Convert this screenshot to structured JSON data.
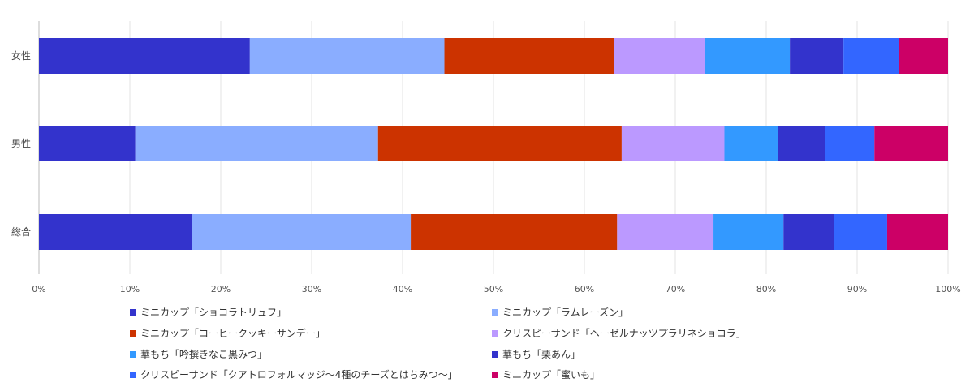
{
  "chart_data": {
    "type": "bar",
    "orientation": "horizontal",
    "stacked": true,
    "categories": [
      "女性",
      "男性",
      "総合"
    ],
    "xlim": [
      0,
      100
    ],
    "x_ticks": [
      "0%",
      "10%",
      "20%",
      "30%",
      "40%",
      "50%",
      "60%",
      "70%",
      "80%",
      "90%",
      "100%"
    ],
    "grid": true,
    "legend_position": "bottom",
    "series": [
      {
        "name": "ミニカップ「ショコラトリュフ」",
        "color": "#3333cc",
        "values": [
          23.2,
          10.6,
          16.8
        ]
      },
      {
        "name": "ミニカップ「ラムレーズン」",
        "color": "#8aadff",
        "values": [
          21.4,
          26.7,
          24.1
        ]
      },
      {
        "name": "ミニカップ「コーヒークッキーサンデー」",
        "color": "#cc3300",
        "values": [
          18.7,
          26.8,
          22.7
        ]
      },
      {
        "name": "クリスピーサンド「ヘーゼルナッツプラリネショコラ」",
        "color": "#bb99ff",
        "values": [
          10.0,
          11.3,
          10.6
        ]
      },
      {
        "name": "華もち「吟撰きなこ黒みつ」",
        "color": "#3399ff",
        "values": [
          9.3,
          5.9,
          7.7
        ]
      },
      {
        "name": "華もち「栗あん」",
        "color": "#3333cc",
        "values": [
          5.9,
          5.2,
          5.6
        ]
      },
      {
        "name": "クリスピーサンド「クアトロフォルマッジ〜4種のチーズとはちみつ〜」",
        "color": "#3366ff",
        "values": [
          6.1,
          5.4,
          5.8
        ]
      },
      {
        "name": "ミニカップ「蜜いも」",
        "color": "#cc0066",
        "values": [
          5.4,
          8.1,
          6.7
        ]
      }
    ]
  }
}
